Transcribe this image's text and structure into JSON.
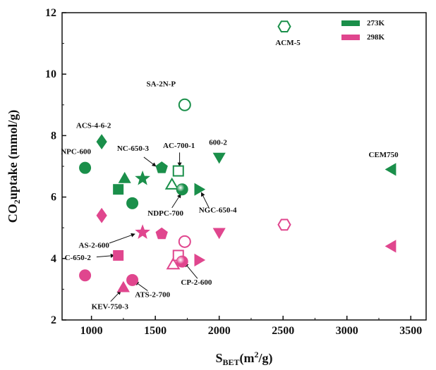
{
  "chart_data": {
    "type": "scatter",
    "xlabel_main": "S",
    "xlabel_sub": "BET",
    "xlabel_rest": "(m",
    "xlabel_sup": "2",
    "xlabel_end": "/g)",
    "ylabel_main": "CO",
    "ylabel_sub": "2",
    "ylabel_rest": "uptake (mmol/g)",
    "xlim": [
      770,
      3620
    ],
    "ylim": [
      2,
      12
    ],
    "xticks": [
      1000,
      1500,
      2000,
      2500,
      3000,
      3500
    ],
    "yticks": [
      2,
      4,
      6,
      8,
      10,
      12
    ],
    "grid": false,
    "legend_position": "top-right",
    "colors": {
      "273K": "#1a8f4a",
      "298K": "#e0468e"
    },
    "legend": [
      {
        "label": "273K",
        "color": "#1a8f4a"
      },
      {
        "label": "298K",
        "color": "#e0468e"
      }
    ],
    "series": [
      {
        "name": "273K",
        "points": [
          {
            "x": 950,
            "y": 6.95,
            "shape": "circle",
            "filled": true
          },
          {
            "x": 1080,
            "y": 7.8,
            "shape": "diamond",
            "filled": true
          },
          {
            "x": 1210,
            "y": 6.25,
            "shape": "square",
            "filled": true
          },
          {
            "x": 1260,
            "y": 6.6,
            "shape": "triangle",
            "filled": true
          },
          {
            "x": 1320,
            "y": 5.8,
            "shape": "circle",
            "filled": true
          },
          {
            "x": 1400,
            "y": 6.6,
            "shape": "star",
            "filled": true
          },
          {
            "x": 1550,
            "y": 6.95,
            "shape": "pentagon",
            "filled": true
          },
          {
            "x": 1630,
            "y": 6.4,
            "shape": "triangle",
            "filled": false
          },
          {
            "x": 1680,
            "y": 6.85,
            "shape": "square",
            "filled": false
          },
          {
            "x": 1710,
            "y": 6.25,
            "shape": "sphere",
            "filled": true
          },
          {
            "x": 1730,
            "y": 9.0,
            "shape": "circle",
            "filled": false
          },
          {
            "x": 1840,
            "y": 6.25,
            "shape": "tri-right",
            "filled": true
          },
          {
            "x": 2000,
            "y": 7.3,
            "shape": "tri-down",
            "filled": true
          },
          {
            "x": 2510,
            "y": 11.55,
            "shape": "hexagon",
            "filled": false
          },
          {
            "x": 3350,
            "y": 6.9,
            "shape": "tri-left",
            "filled": true
          }
        ]
      },
      {
        "name": "298K",
        "points": [
          {
            "x": 950,
            "y": 3.45,
            "shape": "circle",
            "filled": true
          },
          {
            "x": 1080,
            "y": 5.4,
            "shape": "diamond",
            "filled": true
          },
          {
            "x": 1210,
            "y": 4.1,
            "shape": "square",
            "filled": true
          },
          {
            "x": 1250,
            "y": 3.05,
            "shape": "triangle",
            "filled": true
          },
          {
            "x": 1320,
            "y": 3.3,
            "shape": "circle",
            "filled": true
          },
          {
            "x": 1400,
            "y": 4.85,
            "shape": "star",
            "filled": true
          },
          {
            "x": 1550,
            "y": 4.8,
            "shape": "pentagon",
            "filled": true
          },
          {
            "x": 1640,
            "y": 3.8,
            "shape": "triangle",
            "filled": false
          },
          {
            "x": 1680,
            "y": 4.1,
            "shape": "square",
            "filled": false
          },
          {
            "x": 1710,
            "y": 3.9,
            "shape": "sphere",
            "filled": true
          },
          {
            "x": 1730,
            "y": 4.55,
            "shape": "circle",
            "filled": false
          },
          {
            "x": 1840,
            "y": 3.95,
            "shape": "tri-right",
            "filled": true
          },
          {
            "x": 2000,
            "y": 4.85,
            "shape": "tri-down",
            "filled": true
          },
          {
            "x": 2510,
            "y": 5.1,
            "shape": "hexagon",
            "filled": false
          },
          {
            "x": 3350,
            "y": 4.4,
            "shape": "tri-left",
            "filled": true
          }
        ]
      }
    ],
    "annotations": [
      {
        "text": "ACM-5",
        "x": 2440,
        "y": 10.95,
        "anchor": "start"
      },
      {
        "text": "SA-2N-P",
        "x": 1430,
        "y": 9.6,
        "anchor": "start"
      },
      {
        "text": "ACS-4-6-2",
        "x": 880,
        "y": 8.25,
        "anchor": "start"
      },
      {
        "text": "NPC-600",
        "x": 760,
        "y": 7.4,
        "anchor": "start"
      },
      {
        "text": "NC-650-3",
        "x": 1200,
        "y": 7.5,
        "anchor": "start"
      },
      {
        "text": "AC-700-1",
        "x": 1560,
        "y": 7.6,
        "anchor": "start"
      },
      {
        "text": "600-2",
        "x": 1920,
        "y": 7.7,
        "anchor": "start"
      },
      {
        "text": "CEM750",
        "x": 3170,
        "y": 7.3,
        "anchor": "start"
      },
      {
        "text": "NDPC-700",
        "x": 1440,
        "y": 5.4,
        "anchor": "start"
      },
      {
        "text": "NGC-650-4",
        "x": 1840,
        "y": 5.5,
        "anchor": "start"
      },
      {
        "text": "AS-2-600",
        "x": 900,
        "y": 4.35,
        "anchor": "start"
      },
      {
        "text": "C-650-2",
        "x": 790,
        "y": 3.95,
        "anchor": "start"
      },
      {
        "text": "CP-2-600",
        "x": 1700,
        "y": 3.15,
        "anchor": "start"
      },
      {
        "text": "ATS-2-700",
        "x": 1340,
        "y": 2.75,
        "anchor": "start"
      },
      {
        "text": "KEV-750-3",
        "x": 1000,
        "y": 2.35,
        "anchor": "start"
      }
    ],
    "arrows": [
      {
        "from": [
          1410,
          7.3
        ],
        "to": [
          1505,
          7.0
        ]
      },
      {
        "from": [
          1690,
          7.45
        ],
        "to": [
          1690,
          7.0
        ]
      },
      {
        "from": [
          1630,
          5.65
        ],
        "to": [
          1700,
          6.1
        ]
      },
      {
        "from": [
          1920,
          5.65
        ],
        "to": [
          1860,
          6.15
        ]
      },
      {
        "from": [
          1140,
          4.5
        ],
        "to": [
          1340,
          4.8
        ]
      },
      {
        "from": [
          1040,
          4.05
        ],
        "to": [
          1180,
          4.1
        ]
      },
      {
        "from": [
          1830,
          3.35
        ],
        "to": [
          1730,
          3.85
        ]
      },
      {
        "from": [
          1440,
          2.95
        ],
        "to": [
          1340,
          3.25
        ]
      },
      {
        "from": [
          1150,
          2.6
        ],
        "to": [
          1230,
          2.95
        ]
      }
    ]
  }
}
